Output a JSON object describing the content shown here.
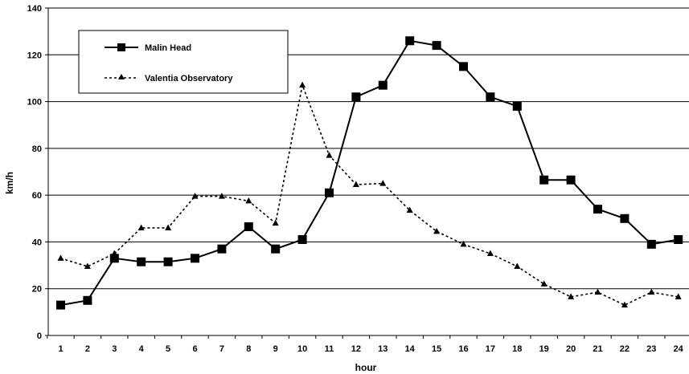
{
  "chart_data": {
    "type": "line",
    "title": "",
    "xlabel": "hour",
    "ylabel": "km/h",
    "ylim": [
      0,
      140
    ],
    "yticks": [
      0,
      20,
      40,
      60,
      80,
      100,
      120,
      140
    ],
    "grid": "horizontal",
    "legend_position": "top-left",
    "x": [
      1,
      2,
      3,
      4,
      5,
      6,
      7,
      8,
      9,
      10,
      11,
      12,
      13,
      14,
      15,
      16,
      17,
      18,
      19,
      20,
      21,
      22,
      23,
      24
    ],
    "series": [
      {
        "name": "Malin Head",
        "style": "solid",
        "marker": "square",
        "color": "#000000",
        "values": [
          13,
          15,
          33,
          31.5,
          31.5,
          33,
          37,
          46.5,
          37,
          41,
          61,
          102,
          107,
          126,
          124,
          115,
          102,
          98,
          66.5,
          66.5,
          54,
          50,
          39,
          41
        ]
      },
      {
        "name": "Valentia Observatory",
        "style": "dashed",
        "marker": "triangle",
        "color": "#000000",
        "values": [
          33,
          29.5,
          35,
          46,
          46,
          59.5,
          59.5,
          57.5,
          48,
          107,
          77,
          64.5,
          65,
          53.5,
          44.5,
          39,
          35,
          29.5,
          22,
          16.5,
          18.5,
          13,
          18.5,
          16.5
        ]
      }
    ]
  }
}
